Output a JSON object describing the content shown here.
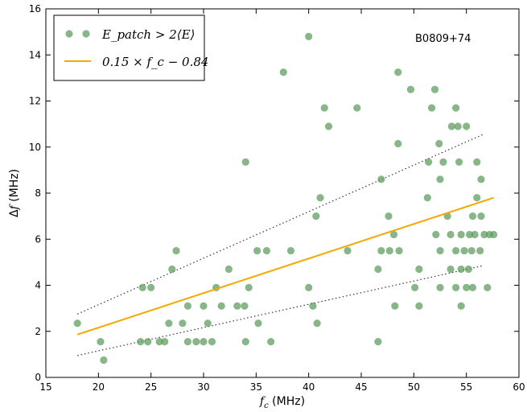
{
  "chart_data": {
    "type": "scatter",
    "title": "",
    "annotation": "B0809+74",
    "xlabel": "f_c (MHz)",
    "xlabel_parts": {
      "var": "f",
      "sub": "c",
      "unit": " (MHz)"
    },
    "ylabel": "Δf (MHz)",
    "ylabel_parts": {
      "sym": "Δ",
      "var": "f",
      "unit": " (MHz)"
    },
    "xlim": [
      15,
      60
    ],
    "ylim": [
      0,
      16
    ],
    "xticks": [
      "15",
      "20",
      "25",
      "30",
      "35",
      "40",
      "45",
      "50",
      "55",
      "60"
    ],
    "yticks": [
      "0",
      "2",
      "4",
      "6",
      "8",
      "10",
      "12",
      "14",
      "16"
    ],
    "grid": false,
    "legend_position": "top-left",
    "colors": {
      "points": "#5a9a5a",
      "fit_line": "#f5a800",
      "bounds": "#333333",
      "frame": "#000000"
    },
    "series": [
      {
        "name": "E_patch > 2⟨E⟩",
        "kind": "points",
        "points": [
          [
            18.0,
            2.35
          ],
          [
            20.2,
            1.55
          ],
          [
            20.5,
            0.75
          ],
          [
            24.0,
            1.55
          ],
          [
            24.2,
            3.9
          ],
          [
            24.7,
            1.55
          ],
          [
            25.0,
            3.9
          ],
          [
            25.8,
            1.55
          ],
          [
            26.3,
            1.55
          ],
          [
            26.7,
            2.35
          ],
          [
            27.0,
            4.7
          ],
          [
            27.4,
            5.5
          ],
          [
            28.0,
            2.35
          ],
          [
            28.5,
            1.55
          ],
          [
            28.5,
            3.1
          ],
          [
            29.3,
            1.55
          ],
          [
            30.0,
            1.55
          ],
          [
            30.0,
            3.1
          ],
          [
            30.4,
            2.35
          ],
          [
            30.8,
            1.55
          ],
          [
            31.2,
            3.9
          ],
          [
            31.7,
            3.1
          ],
          [
            32.4,
            4.7
          ],
          [
            33.2,
            3.1
          ],
          [
            33.9,
            3.1
          ],
          [
            34.0,
            9.35
          ],
          [
            34.0,
            1.55
          ],
          [
            34.3,
            3.9
          ],
          [
            35.1,
            5.5
          ],
          [
            35.2,
            2.35
          ],
          [
            36.0,
            5.5
          ],
          [
            36.4,
            1.55
          ],
          [
            37.6,
            13.25
          ],
          [
            38.3,
            5.5
          ],
          [
            40.0,
            14.8
          ],
          [
            40.0,
            3.9
          ],
          [
            40.4,
            3.1
          ],
          [
            40.7,
            7.0
          ],
          [
            40.8,
            2.35
          ],
          [
            41.1,
            7.8
          ],
          [
            41.5,
            11.7
          ],
          [
            41.9,
            10.9
          ],
          [
            43.7,
            5.5
          ],
          [
            44.6,
            11.7
          ],
          [
            46.6,
            4.7
          ],
          [
            46.6,
            1.55
          ],
          [
            46.9,
            8.6
          ],
          [
            46.9,
            5.5
          ],
          [
            47.6,
            7.0
          ],
          [
            47.7,
            5.5
          ],
          [
            48.1,
            6.2
          ],
          [
            48.2,
            3.1
          ],
          [
            48.5,
            10.15
          ],
          [
            48.5,
            13.25
          ],
          [
            48.6,
            5.5
          ],
          [
            49.7,
            12.5
          ],
          [
            50.1,
            3.9
          ],
          [
            50.5,
            4.7
          ],
          [
            50.5,
            3.1
          ],
          [
            51.3,
            7.8
          ],
          [
            51.4,
            9.35
          ],
          [
            51.7,
            11.7
          ],
          [
            52.0,
            12.5
          ],
          [
            52.1,
            6.2
          ],
          [
            52.4,
            10.15
          ],
          [
            52.5,
            8.6
          ],
          [
            52.5,
            5.5
          ],
          [
            52.5,
            3.9
          ],
          [
            52.8,
            9.35
          ],
          [
            53.2,
            7.0
          ],
          [
            53.5,
            6.2
          ],
          [
            53.5,
            4.7
          ],
          [
            53.6,
            10.9
          ],
          [
            54.0,
            11.7
          ],
          [
            54.0,
            5.5
          ],
          [
            54.0,
            3.9
          ],
          [
            54.2,
            10.9
          ],
          [
            54.3,
            9.35
          ],
          [
            54.5,
            6.2
          ],
          [
            54.5,
            4.7
          ],
          [
            54.5,
            3.1
          ],
          [
            54.8,
            5.5
          ],
          [
            55.0,
            10.9
          ],
          [
            55.0,
            3.9
          ],
          [
            55.2,
            4.7
          ],
          [
            55.3,
            6.2
          ],
          [
            55.5,
            5.5
          ],
          [
            55.6,
            7.0
          ],
          [
            55.6,
            3.9
          ],
          [
            55.8,
            6.2
          ],
          [
            56.0,
            9.35
          ],
          [
            56.0,
            7.8
          ],
          [
            56.3,
            5.5
          ],
          [
            56.4,
            8.6
          ],
          [
            56.4,
            7.0
          ],
          [
            56.7,
            6.2
          ],
          [
            57.0,
            3.9
          ],
          [
            57.2,
            6.2
          ],
          [
            57.6,
            6.2
          ]
        ]
      },
      {
        "name": "0.15 × f_c − 0.84",
        "kind": "line",
        "x": [
          18.0,
          57.6
        ],
        "y": [
          1.86,
          7.8
        ]
      }
    ],
    "bounds": [
      {
        "x": [
          18.0,
          56.6
        ],
        "y": [
          2.75,
          10.55
        ]
      },
      {
        "x": [
          18.0,
          56.6
        ],
        "y": [
          0.95,
          4.85
        ]
      }
    ]
  }
}
